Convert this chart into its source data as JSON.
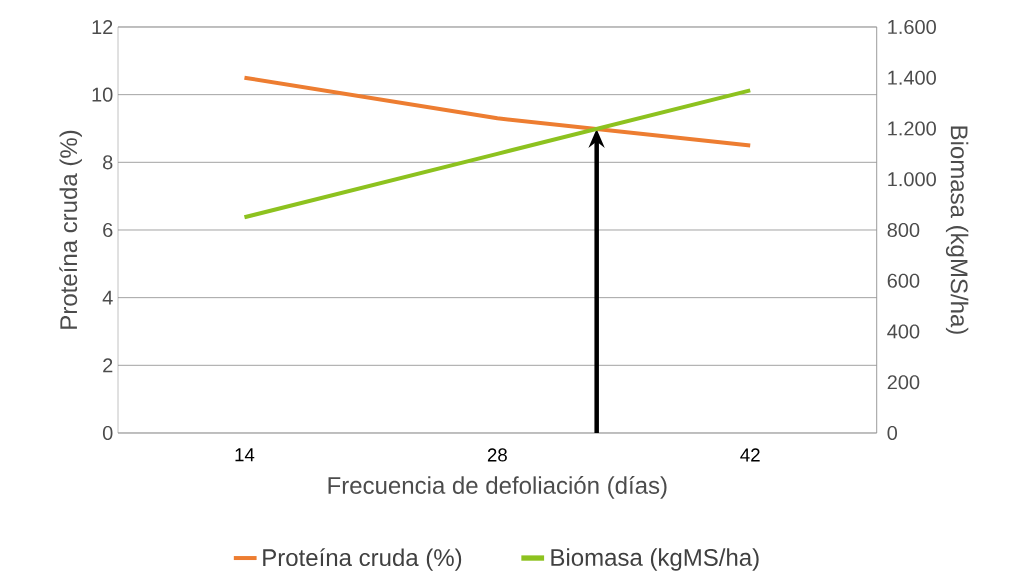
{
  "chart_data": {
    "type": "line",
    "xlabel": "Frecuencia de defoliación (días)",
    "ylabel": "Proteína cruda (%)",
    "y2label": "Biomasa (kgMS/ha)",
    "categories": [
      "14",
      "28",
      "42"
    ],
    "series": [
      {
        "name": "Proteína cruda (%)",
        "color": "#ed7d31",
        "values": [
          10.5,
          9.3,
          8.5
        ]
      },
      {
        "name": "Biomasa (kgMS/ha)",
        "color": "#8dc21f",
        "axis": "y2",
        "values": [
          850,
          1100,
          1350
        ]
      }
    ],
    "ylim": [
      0,
      12
    ],
    "yticks": [
      0,
      2,
      4,
      6,
      8,
      10,
      12
    ],
    "y2lim": [
      0,
      1600
    ],
    "y2ticks": [
      0,
      200,
      400,
      600,
      800,
      {
        "value": 1000,
        "label": "1.000"
      },
      {
        "value": 1200,
        "label": "1.200"
      },
      {
        "value": 1400,
        "label": "1.400"
      },
      {
        "value": 1600,
        "label": "1.600"
      }
    ],
    "grid": "y",
    "legend": "bottom"
  }
}
